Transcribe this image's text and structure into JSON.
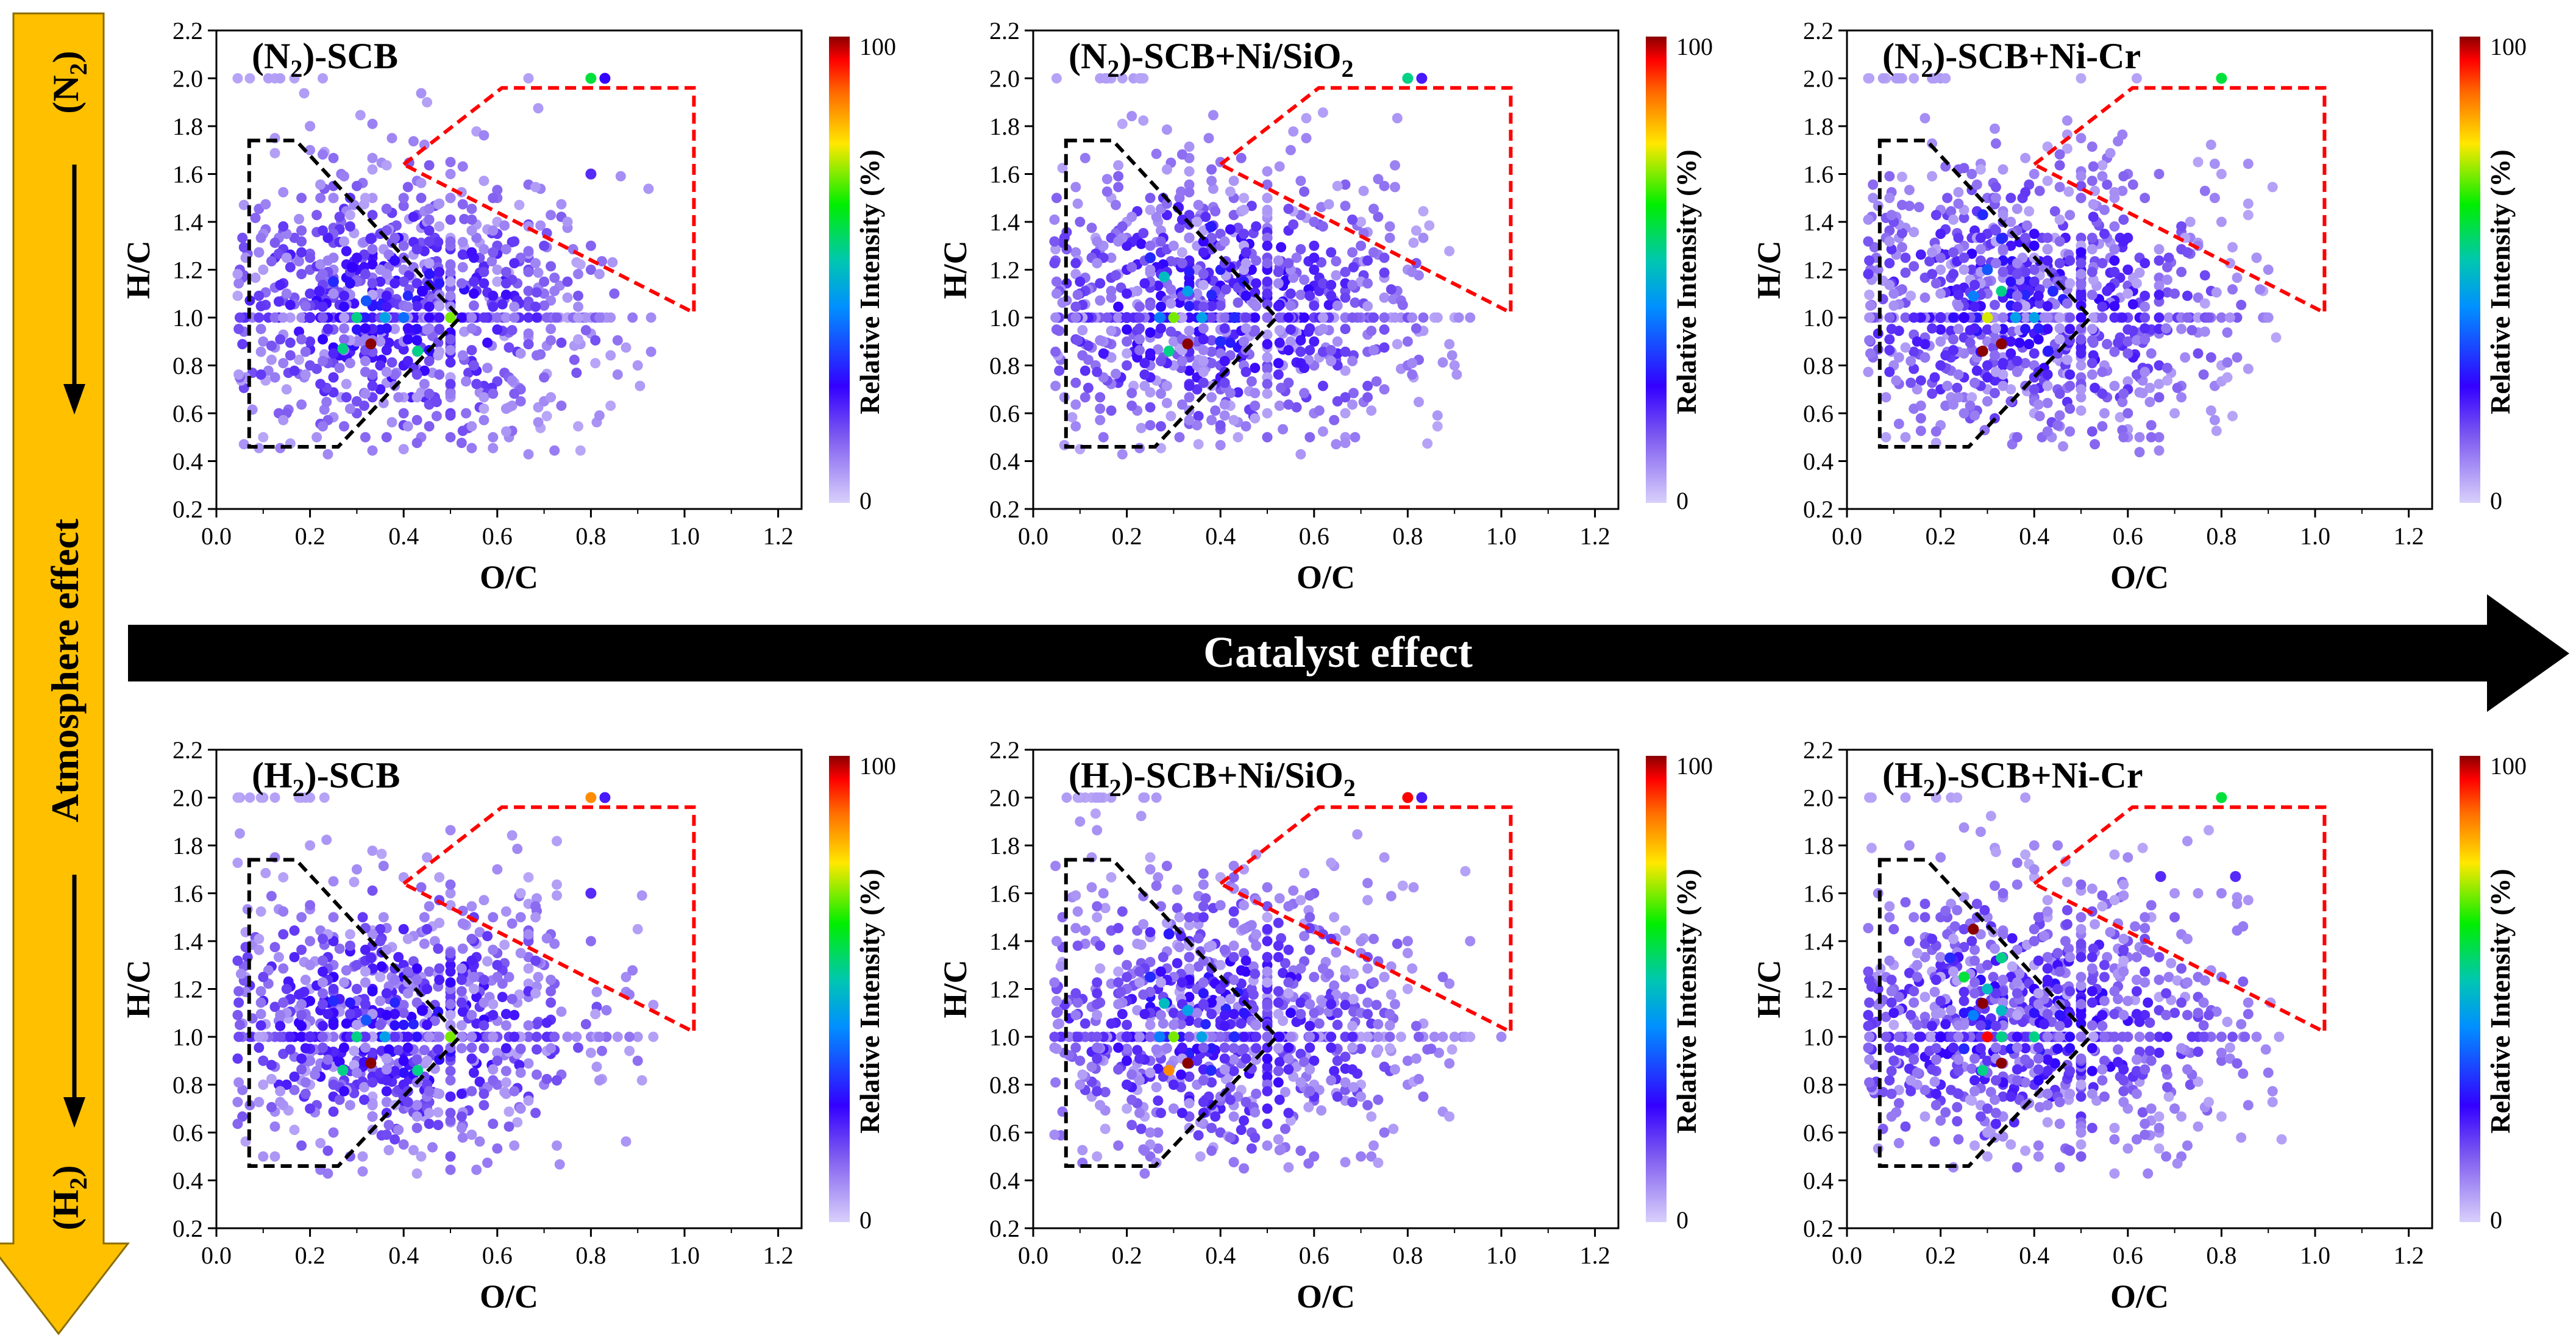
{
  "figure": {
    "catalyst_arrow_label": "Catalyst effect",
    "atmosphere_arrow_label": "Atmosphere effect",
    "atm_top_label": "(N",
    "atm_top_sub": "2",
    "atm_top_close": ")",
    "atm_bottom_label": "(H",
    "atm_bottom_sub": "2",
    "atm_bottom_close": ")",
    "arrow_color": "#000000",
    "atmosphere_arrow_color": "#FFC000"
  },
  "chart_data": [
    {
      "type": "scatter",
      "title_prefix": "(N",
      "title_sub": "2",
      "title_suffix": ")-SCB",
      "xlabel": "O/C",
      "ylabel": "H/C",
      "colorbar_label": "Relative Intensity (%)",
      "xlim": [
        0,
        1.25
      ],
      "ylim": [
        0.2,
        2.2
      ],
      "x_ticks": [
        "0.0",
        "0.2",
        "0.4",
        "0.6",
        "0.8",
        "1.0",
        "1.2"
      ],
      "y_ticks": [
        "0.2",
        "0.4",
        "0.6",
        "0.8",
        "1.0",
        "1.2",
        "1.4",
        "1.6",
        "1.8",
        "2.0",
        "2.2"
      ],
      "colorbar_ticks": [
        "0",
        "100"
      ],
      "points": [
        {
          "x": 0.3,
          "y": 1.0,
          "v": 55
        },
        {
          "x": 0.32,
          "y": 1.07,
          "v": 35
        },
        {
          "x": 0.33,
          "y": 0.89,
          "v": 100
        },
        {
          "x": 0.27,
          "y": 0.87,
          "v": 55
        },
        {
          "x": 0.36,
          "y": 1.0,
          "v": 45
        },
        {
          "x": 0.4,
          "y": 1.0,
          "v": 38
        },
        {
          "x": 0.5,
          "y": 1.0,
          "v": 70
        },
        {
          "x": 0.25,
          "y": 1.15,
          "v": 30
        },
        {
          "x": 0.29,
          "y": 1.21,
          "v": 25
        },
        {
          "x": 0.43,
          "y": 0.86,
          "v": 55
        },
        {
          "x": 0.8,
          "y": 2.0,
          "v": 60
        },
        {
          "x": 0.83,
          "y": 2.0,
          "v": 25
        },
        {
          "x": 0.8,
          "y": 1.6,
          "v": 20
        },
        {
          "x": 0.33,
          "y": 1.33,
          "v": 20
        },
        {
          "x": 0.44,
          "y": 1.11,
          "v": 25
        },
        {
          "x": 0.2,
          "y": 1.0,
          "v": 20
        },
        {
          "x": 0.22,
          "y": 1.11,
          "v": 22
        }
      ]
    },
    {
      "type": "scatter",
      "title_prefix": "(N",
      "title_sub": "2",
      "title_suffix": ")-SCB+Ni/SiO",
      "title_sub2": "2",
      "xlabel": "O/C",
      "ylabel": "H/C",
      "colorbar_label": "Relative Intensity (%)",
      "xlim": [
        0,
        1.25
      ],
      "ylim": [
        0.2,
        2.2
      ],
      "x_ticks": [
        "0.0",
        "0.2",
        "0.4",
        "0.6",
        "0.8",
        "1.0",
        "1.2"
      ],
      "y_ticks": [
        "0.2",
        "0.4",
        "0.6",
        "0.8",
        "1.0",
        "1.2",
        "1.4",
        "1.6",
        "1.8",
        "2.0",
        "2.2"
      ],
      "colorbar_ticks": [
        "0",
        "100"
      ],
      "points": [
        {
          "x": 0.3,
          "y": 1.0,
          "v": 70
        },
        {
          "x": 0.27,
          "y": 1.0,
          "v": 40
        },
        {
          "x": 0.33,
          "y": 0.89,
          "v": 100
        },
        {
          "x": 0.29,
          "y": 0.86,
          "v": 55
        },
        {
          "x": 0.36,
          "y": 1.0,
          "v": 45
        },
        {
          "x": 0.33,
          "y": 1.11,
          "v": 45
        },
        {
          "x": 0.28,
          "y": 1.17,
          "v": 50
        },
        {
          "x": 0.25,
          "y": 1.25,
          "v": 30
        },
        {
          "x": 0.43,
          "y": 1.0,
          "v": 30
        },
        {
          "x": 0.38,
          "y": 1.38,
          "v": 28
        },
        {
          "x": 0.8,
          "y": 2.0,
          "v": 55
        },
        {
          "x": 0.83,
          "y": 2.0,
          "v": 22
        },
        {
          "x": 0.31,
          "y": 1.46,
          "v": 22
        },
        {
          "x": 0.4,
          "y": 0.9,
          "v": 30
        },
        {
          "x": 0.2,
          "y": 1.0,
          "v": 20
        }
      ]
    },
    {
      "type": "scatter",
      "title_prefix": "(N",
      "title_sub": "2",
      "title_suffix": ")-SCB+Ni-Cr",
      "xlabel": "O/C",
      "ylabel": "H/C",
      "colorbar_label": "Relative Intensity (%)",
      "xlim": [
        0,
        1.25
      ],
      "ylim": [
        0.2,
        2.2
      ],
      "x_ticks": [
        "0.0",
        "0.2",
        "0.4",
        "0.6",
        "0.8",
        "1.0",
        "1.2"
      ],
      "y_ticks": [
        "0.2",
        "0.4",
        "0.6",
        "0.8",
        "1.0",
        "1.2",
        "1.4",
        "1.6",
        "1.8",
        "2.0",
        "2.2"
      ],
      "colorbar_ticks": [
        "0",
        "100"
      ],
      "points": [
        {
          "x": 0.29,
          "y": 0.86,
          "v": 100
        },
        {
          "x": 0.33,
          "y": 0.89,
          "v": 100
        },
        {
          "x": 0.3,
          "y": 1.0,
          "v": 75
        },
        {
          "x": 0.33,
          "y": 1.11,
          "v": 55
        },
        {
          "x": 0.27,
          "y": 1.09,
          "v": 40
        },
        {
          "x": 0.36,
          "y": 1.0,
          "v": 45
        },
        {
          "x": 0.4,
          "y": 1.0,
          "v": 45
        },
        {
          "x": 0.3,
          "y": 1.2,
          "v": 35
        },
        {
          "x": 0.33,
          "y": 1.33,
          "v": 30
        },
        {
          "x": 0.29,
          "y": 1.43,
          "v": 30
        },
        {
          "x": 0.44,
          "y": 1.11,
          "v": 30
        },
        {
          "x": 0.43,
          "y": 0.86,
          "v": 28
        },
        {
          "x": 0.8,
          "y": 2.0,
          "v": 60
        },
        {
          "x": 0.25,
          "y": 1.0,
          "v": 25
        },
        {
          "x": 0.2,
          "y": 1.0,
          "v": 20
        }
      ]
    },
    {
      "type": "scatter",
      "title_prefix": "(H",
      "title_sub": "2",
      "title_suffix": ")-SCB",
      "xlabel": "O/C",
      "ylabel": "H/C",
      "colorbar_label": "Relative Intensity (%)",
      "xlim": [
        0,
        1.25
      ],
      "ylim": [
        0.2,
        2.2
      ],
      "x_ticks": [
        "0.0",
        "0.2",
        "0.4",
        "0.6",
        "0.8",
        "1.0",
        "1.2"
      ],
      "y_ticks": [
        "0.2",
        "0.4",
        "0.6",
        "0.8",
        "1.0",
        "1.2",
        "1.4",
        "1.6",
        "1.8",
        "2.0",
        "2.2"
      ],
      "colorbar_ticks": [
        "0",
        "100"
      ],
      "points": [
        {
          "x": 0.3,
          "y": 1.0,
          "v": 55
        },
        {
          "x": 0.33,
          "y": 0.89,
          "v": 100
        },
        {
          "x": 0.27,
          "y": 0.86,
          "v": 55
        },
        {
          "x": 0.36,
          "y": 1.0,
          "v": 45
        },
        {
          "x": 0.5,
          "y": 1.0,
          "v": 70
        },
        {
          "x": 0.32,
          "y": 1.07,
          "v": 35
        },
        {
          "x": 0.25,
          "y": 1.15,
          "v": 30
        },
        {
          "x": 0.43,
          "y": 0.86,
          "v": 55
        },
        {
          "x": 0.8,
          "y": 2.0,
          "v": 85
        },
        {
          "x": 0.83,
          "y": 2.0,
          "v": 22
        },
        {
          "x": 0.8,
          "y": 1.6,
          "v": 20
        },
        {
          "x": 0.33,
          "y": 1.33,
          "v": 20
        },
        {
          "x": 0.44,
          "y": 1.11,
          "v": 25
        },
        {
          "x": 0.2,
          "y": 1.0,
          "v": 20
        }
      ]
    },
    {
      "type": "scatter",
      "title_prefix": "(H",
      "title_sub": "2",
      "title_suffix": ")-SCB+Ni/SiO",
      "title_sub2": "2",
      "xlabel": "O/C",
      "ylabel": "H/C",
      "colorbar_label": "Relative Intensity (%)",
      "xlim": [
        0,
        1.25
      ],
      "ylim": [
        0.2,
        2.2
      ],
      "x_ticks": [
        "0.0",
        "0.2",
        "0.4",
        "0.6",
        "0.8",
        "1.0",
        "1.2"
      ],
      "y_ticks": [
        "0.2",
        "0.4",
        "0.6",
        "0.8",
        "1.0",
        "1.2",
        "1.4",
        "1.6",
        "1.8",
        "2.0",
        "2.2"
      ],
      "colorbar_ticks": [
        "0",
        "100"
      ],
      "points": [
        {
          "x": 0.3,
          "y": 1.0,
          "v": 70
        },
        {
          "x": 0.33,
          "y": 0.89,
          "v": 100
        },
        {
          "x": 0.29,
          "y": 0.86,
          "v": 85
        },
        {
          "x": 0.27,
          "y": 1.0,
          "v": 40
        },
        {
          "x": 0.36,
          "y": 1.0,
          "v": 45
        },
        {
          "x": 0.33,
          "y": 1.11,
          "v": 45
        },
        {
          "x": 0.28,
          "y": 1.14,
          "v": 50
        },
        {
          "x": 0.25,
          "y": 1.25,
          "v": 30
        },
        {
          "x": 0.43,
          "y": 1.0,
          "v": 30
        },
        {
          "x": 0.29,
          "y": 1.43,
          "v": 28
        },
        {
          "x": 0.8,
          "y": 2.0,
          "v": 95
        },
        {
          "x": 0.83,
          "y": 2.0,
          "v": 22
        },
        {
          "x": 0.38,
          "y": 0.86,
          "v": 30
        },
        {
          "x": 0.2,
          "y": 1.0,
          "v": 20
        }
      ]
    },
    {
      "type": "scatter",
      "title_prefix": "(H",
      "title_sub": "2",
      "title_suffix": ")-SCB+Ni-Cr",
      "xlabel": "O/C",
      "ylabel": "H/C",
      "colorbar_label": "Relative Intensity (%)",
      "xlim": [
        0,
        1.25
      ],
      "ylim": [
        0.2,
        2.2
      ],
      "x_ticks": [
        "0.0",
        "0.2",
        "0.4",
        "0.6",
        "0.8",
        "1.0",
        "1.2"
      ],
      "y_ticks": [
        "0.2",
        "0.4",
        "0.6",
        "0.8",
        "1.0",
        "1.2",
        "1.4",
        "1.6",
        "1.8",
        "2.0",
        "2.2"
      ],
      "colorbar_ticks": [
        "0",
        "100"
      ],
      "points": [
        {
          "x": 0.27,
          "y": 1.45,
          "v": 100
        },
        {
          "x": 0.29,
          "y": 1.14,
          "v": 100
        },
        {
          "x": 0.33,
          "y": 0.89,
          "v": 100
        },
        {
          "x": 0.3,
          "y": 1.0,
          "v": 95
        },
        {
          "x": 0.33,
          "y": 1.0,
          "v": 55
        },
        {
          "x": 0.33,
          "y": 1.11,
          "v": 50
        },
        {
          "x": 0.25,
          "y": 1.25,
          "v": 60
        },
        {
          "x": 0.3,
          "y": 1.2,
          "v": 50
        },
        {
          "x": 0.33,
          "y": 1.33,
          "v": 55
        },
        {
          "x": 0.22,
          "y": 1.33,
          "v": 30
        },
        {
          "x": 0.29,
          "y": 0.86,
          "v": 55
        },
        {
          "x": 0.4,
          "y": 1.0,
          "v": 55
        },
        {
          "x": 0.25,
          "y": 0.95,
          "v": 30
        },
        {
          "x": 0.27,
          "y": 1.09,
          "v": 40
        },
        {
          "x": 0.8,
          "y": 2.0,
          "v": 60
        },
        {
          "x": 0.67,
          "y": 1.67,
          "v": 20
        },
        {
          "x": 0.83,
          "y": 1.67,
          "v": 20
        },
        {
          "x": 0.2,
          "y": 1.0,
          "v": 25
        }
      ]
    }
  ]
}
